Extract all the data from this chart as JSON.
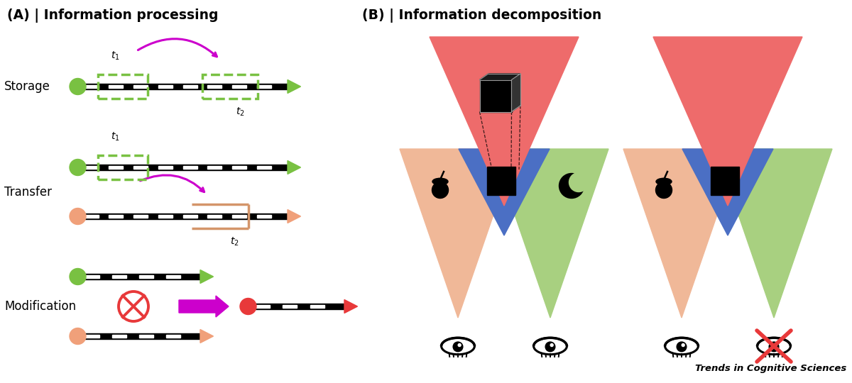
{
  "title_A": "(A) | Information processing",
  "title_B": "(B) | Information decomposition",
  "label_storage": "Storage",
  "label_transfer": "Transfer",
  "label_modification": "Modification",
  "brand_text": "Trends in Cognitive Sciences",
  "color_green": "#79C142",
  "color_salmon": "#F0A07A",
  "color_red": "#E8393A",
  "color_magenta": "#CC00CC",
  "color_orange_bracket": "#D4956A",
  "color_tri_red": "#EE6B6B",
  "color_tri_blue": "#4B6FC4",
  "color_tri_green": "#A8D080",
  "color_tri_salmon": "#F0B898",
  "bg": "#ffffff"
}
